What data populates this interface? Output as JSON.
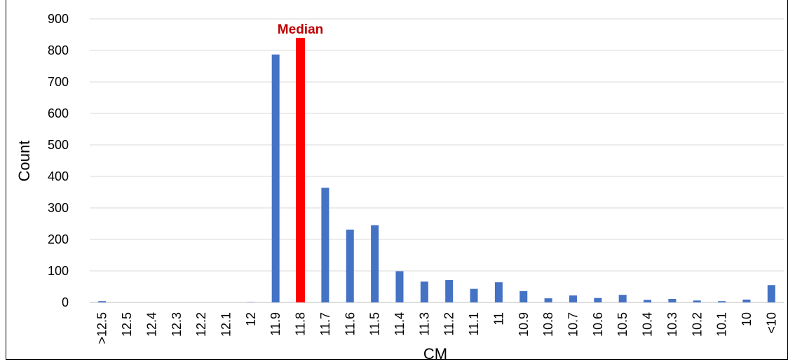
{
  "chart_data": {
    "type": "bar",
    "title": "",
    "xlabel": "CM",
    "ylabel": "Count",
    "ylim": [
      0,
      900
    ],
    "yticks": [
      0,
      100,
      200,
      300,
      400,
      500,
      600,
      700,
      800,
      900
    ],
    "grid": true,
    "categories": [
      ">12.5",
      "12.5",
      "12.4",
      "12.3",
      "12.2",
      "12.1",
      "12",
      "11.9",
      "11.8",
      "11.7",
      "11.6",
      "11.5",
      "11.4",
      "11.3",
      "11.2",
      "11.1",
      "11",
      "10.9",
      "10.8",
      "10.7",
      "10.6",
      "10.5",
      "10.4",
      "10.3",
      "10.2",
      "10.1",
      "10",
      "<10"
    ],
    "values": [
      4,
      0,
      0,
      0,
      0,
      0,
      1,
      787,
      840,
      364,
      231,
      245,
      99,
      66,
      71,
      43,
      64,
      36,
      13,
      22,
      14,
      24,
      8,
      11,
      6,
      4,
      9,
      55
    ],
    "bar_color": "#4472C4",
    "highlight": {
      "category": "11.8",
      "color": "#FF0000",
      "label": "Median",
      "label_color": "#C00000"
    }
  }
}
